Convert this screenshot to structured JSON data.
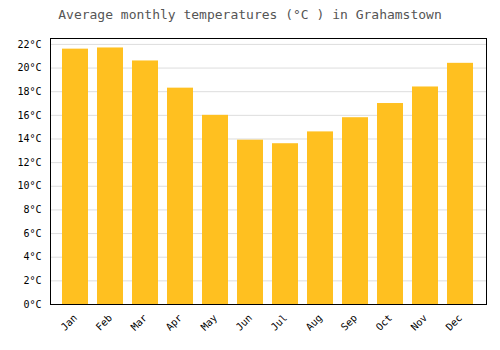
{
  "chart_data": {
    "type": "bar",
    "title": "Average monthly temperatures (°C ) in Grahamstown",
    "categories": [
      "Jan",
      "Feb",
      "Mar",
      "Apr",
      "May",
      "Jun",
      "Jul",
      "Aug",
      "Sep",
      "Oct",
      "Nov",
      "Dec"
    ],
    "values": [
      21.6,
      21.7,
      20.6,
      18.3,
      16.0,
      13.9,
      13.6,
      14.6,
      15.8,
      17.0,
      18.4,
      20.4
    ],
    "color": "#FFC020",
    "ylim": [
      0,
      22.5
    ],
    "yticks": [
      {
        "value": 0,
        "label": "0°C"
      },
      {
        "value": 2,
        "label": "2°C"
      },
      {
        "value": 4,
        "label": "4°C"
      },
      {
        "value": 6,
        "label": "6°C"
      },
      {
        "value": 8,
        "label": "8°C"
      },
      {
        "value": 10,
        "label": "10°C"
      },
      {
        "value": 12,
        "label": "12°C"
      },
      {
        "value": 14,
        "label": "14°C"
      },
      {
        "value": 16,
        "label": "16°C"
      },
      {
        "value": 18,
        "label": "18°C"
      },
      {
        "value": 20,
        "label": "20°C"
      },
      {
        "value": 22,
        "label": "22°C"
      }
    ],
    "grid": true
  }
}
